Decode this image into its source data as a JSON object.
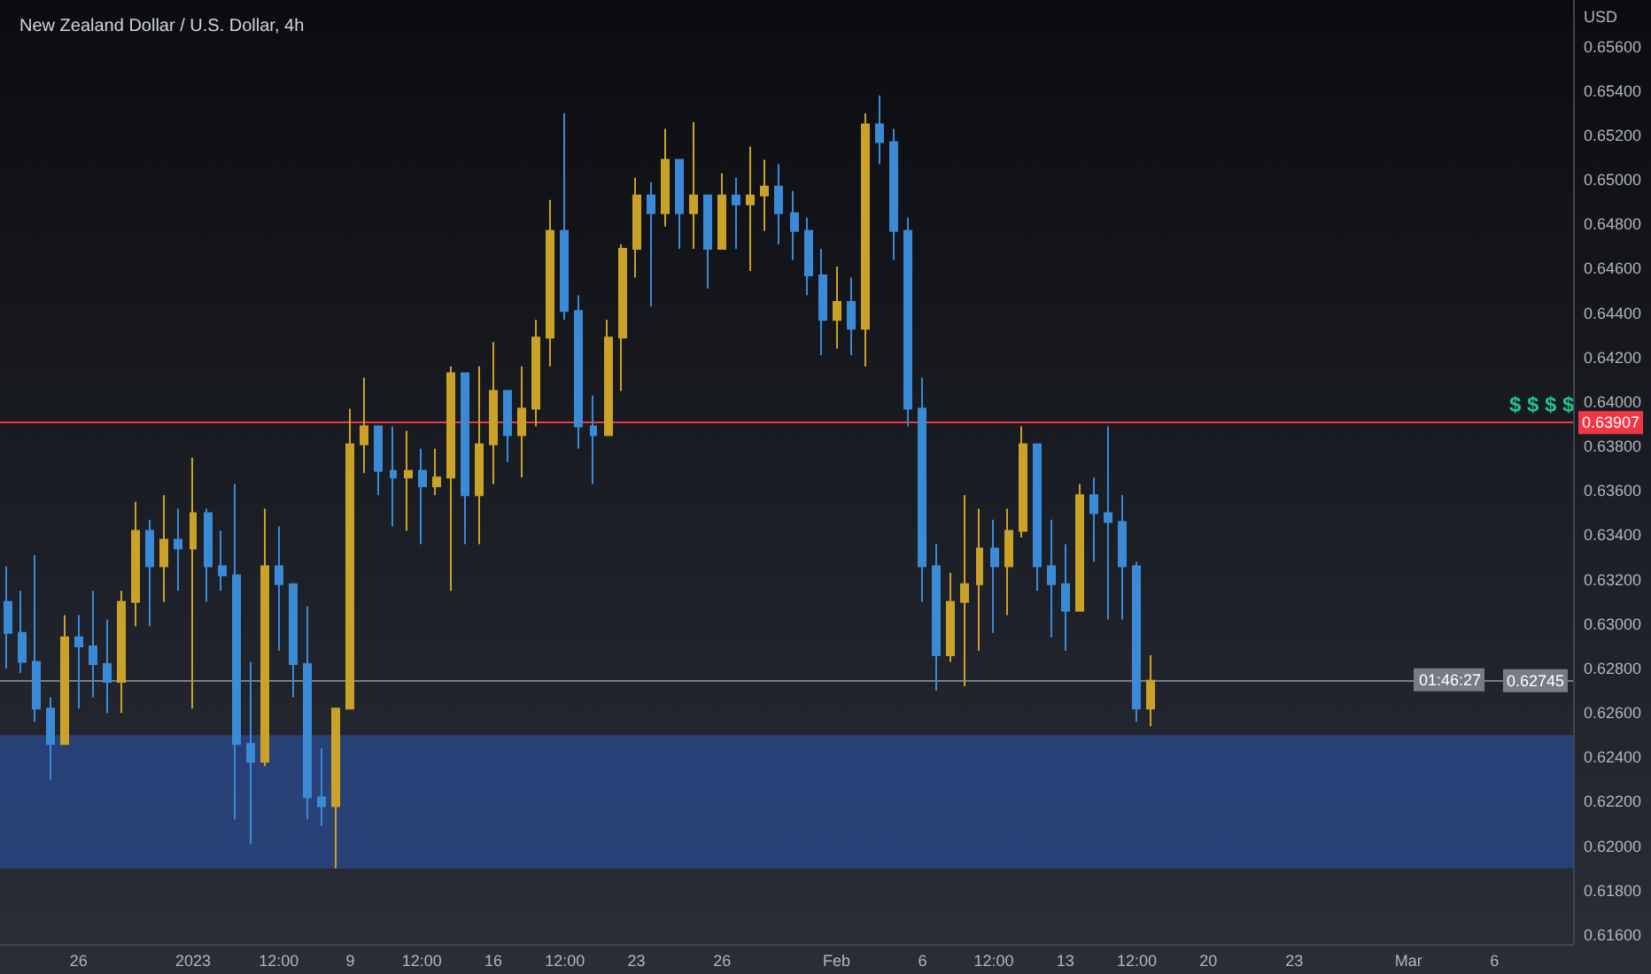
{
  "chart_data": {
    "type": "candlestick",
    "title": "New Zealand Dollar / U.S. Dollar, 4h",
    "ylabel": "USD",
    "categories": [
      null,
      null,
      null,
      null,
      null,
      "26",
      null,
      null,
      null,
      null,
      null,
      null,
      null,
      "2023",
      null,
      null,
      null,
      null,
      null,
      "12:00",
      null,
      null,
      null,
      null,
      "9",
      null,
      null,
      null,
      null,
      "12:00",
      null,
      null,
      null,
      null,
      "16",
      null,
      null,
      null,
      null,
      "12:00",
      null,
      null,
      null,
      null,
      "23",
      null,
      null,
      null,
      null,
      null,
      "26",
      null,
      null,
      null,
      null,
      null,
      null,
      null,
      "Feb",
      null,
      null,
      null,
      null,
      null,
      "6",
      null,
      null,
      null,
      null,
      "12:00",
      null,
      null,
      null,
      null,
      "13",
      null,
      null,
      null,
      null,
      "12:00",
      null,
      null,
      null,
      null,
      "20",
      null,
      null,
      null,
      null,
      null,
      "23",
      null,
      null,
      null,
      null,
      null,
      null,
      null,
      "Mar",
      null,
      null,
      null,
      null,
      null,
      "6",
      null,
      null,
      null,
      null,
      null
    ],
    "ohlc": [
      [
        0.631,
        0.6326,
        0.628,
        0.6296
      ],
      [
        0.6296,
        0.6315,
        0.6278,
        0.6283
      ],
      [
        0.6283,
        0.6331,
        0.6256,
        0.6262
      ],
      [
        0.6262,
        0.6267,
        0.623,
        0.6246
      ],
      [
        0.6246,
        0.6304,
        0.6246,
        0.6294
      ],
      [
        0.6294,
        0.6304,
        0.6262,
        0.629
      ],
      [
        0.629,
        0.6315,
        0.6267,
        0.6282
      ],
      [
        0.6282,
        0.6302,
        0.626,
        0.6274
      ],
      [
        0.6274,
        0.6315,
        0.626,
        0.631
      ],
      [
        0.631,
        0.6355,
        0.6299,
        0.6342
      ],
      [
        0.6342,
        0.6347,
        0.6299,
        0.6326
      ],
      [
        0.6326,
        0.6358,
        0.631,
        0.6338
      ],
      [
        0.6338,
        0.6352,
        0.6315,
        0.6334
      ],
      [
        0.6334,
        0.6375,
        0.6262,
        0.635
      ],
      [
        0.635,
        0.6352,
        0.631,
        0.6326
      ],
      [
        0.6326,
        0.6342,
        0.6315,
        0.6322
      ],
      [
        0.6322,
        0.6363,
        0.6212,
        0.6246
      ],
      [
        0.6246,
        0.6283,
        0.6201,
        0.6238
      ],
      [
        0.6238,
        0.6352,
        0.6236,
        0.6326
      ],
      [
        0.6326,
        0.6344,
        0.6288,
        0.6318
      ],
      [
        0.6318,
        0.6318,
        0.6267,
        0.6282
      ],
      [
        0.6282,
        0.6308,
        0.6212,
        0.6222
      ],
      [
        0.6222,
        0.6244,
        0.6209,
        0.6218
      ],
      [
        0.6218,
        0.6262,
        0.619,
        0.6262
      ],
      [
        0.6262,
        0.6397,
        0.6262,
        0.6381
      ],
      [
        0.6381,
        0.6411,
        0.6368,
        0.6389
      ],
      [
        0.6389,
        0.6389,
        0.6358,
        0.6369
      ],
      [
        0.6369,
        0.6389,
        0.6344,
        0.6366
      ],
      [
        0.6366,
        0.6387,
        0.6342,
        0.6369
      ],
      [
        0.6369,
        0.6379,
        0.6336,
        0.6362
      ],
      [
        0.6362,
        0.6379,
        0.6358,
        0.6366
      ],
      [
        0.6366,
        0.6416,
        0.6315,
        0.6413
      ],
      [
        0.6413,
        0.6413,
        0.6336,
        0.6358
      ],
      [
        0.6358,
        0.6416,
        0.6336,
        0.6381
      ],
      [
        0.6381,
        0.6427,
        0.6363,
        0.6405
      ],
      [
        0.6405,
        0.6405,
        0.6373,
        0.6385
      ],
      [
        0.6385,
        0.6416,
        0.6366,
        0.6397
      ],
      [
        0.6397,
        0.6437,
        0.6389,
        0.6429
      ],
      [
        0.6429,
        0.6491,
        0.6416,
        0.6477
      ],
      [
        0.6477,
        0.653,
        0.6437,
        0.6441
      ],
      [
        0.6441,
        0.6448,
        0.6379,
        0.6389
      ],
      [
        0.6389,
        0.6403,
        0.6363,
        0.6385
      ],
      [
        0.6385,
        0.6437,
        0.6385,
        0.6429
      ],
      [
        0.6429,
        0.6471,
        0.6405,
        0.6469
      ],
      [
        0.6469,
        0.6501,
        0.6456,
        0.6493
      ],
      [
        0.6493,
        0.6499,
        0.6443,
        0.6485
      ],
      [
        0.6485,
        0.6523,
        0.6479,
        0.6509
      ],
      [
        0.6509,
        0.6509,
        0.6469,
        0.6485
      ],
      [
        0.6485,
        0.6526,
        0.6469,
        0.6493
      ],
      [
        0.6493,
        0.6493,
        0.6451,
        0.6469
      ],
      [
        0.6469,
        0.6503,
        0.6469,
        0.6493
      ],
      [
        0.6493,
        0.6501,
        0.6469,
        0.6489
      ],
      [
        0.6489,
        0.6515,
        0.6459,
        0.6493
      ],
      [
        0.6493,
        0.6509,
        0.6477,
        0.6497
      ],
      [
        0.6497,
        0.6507,
        0.6471,
        0.6485
      ],
      [
        0.6485,
        0.6495,
        0.6464,
        0.6477
      ],
      [
        0.6477,
        0.6483,
        0.6448,
        0.6457
      ],
      [
        0.6457,
        0.6469,
        0.6421,
        0.6437
      ],
      [
        0.6437,
        0.6461,
        0.6424,
        0.6445
      ],
      [
        0.6445,
        0.6456,
        0.6421,
        0.6433
      ],
      [
        0.6433,
        0.653,
        0.6416,
        0.6525
      ],
      [
        0.6525,
        0.6538,
        0.6507,
        0.6517
      ],
      [
        0.6517,
        0.6523,
        0.6464,
        0.6477
      ],
      [
        0.6477,
        0.6483,
        0.6389,
        0.6397
      ],
      [
        0.6397,
        0.6411,
        0.631,
        0.6326
      ],
      [
        0.6326,
        0.6336,
        0.627,
        0.6286
      ],
      [
        0.6286,
        0.6323,
        0.6283,
        0.631
      ],
      [
        0.631,
        0.6358,
        0.6272,
        0.6318
      ],
      [
        0.6318,
        0.6352,
        0.6288,
        0.6334
      ],
      [
        0.6334,
        0.6347,
        0.6296,
        0.6326
      ],
      [
        0.6326,
        0.6352,
        0.6304,
        0.6342
      ],
      [
        0.6342,
        0.6389,
        0.6339,
        0.6381
      ],
      [
        0.6381,
        0.6381,
        0.6315,
        0.6326
      ],
      [
        0.6326,
        0.6347,
        0.6294,
        0.6318
      ],
      [
        0.6318,
        0.6336,
        0.6288,
        0.6306
      ],
      [
        0.6306,
        0.6363,
        0.6306,
        0.6358
      ],
      [
        0.6358,
        0.6366,
        0.6328,
        0.635
      ],
      [
        0.635,
        0.6389,
        0.6302,
        0.6346
      ],
      [
        0.6346,
        0.6358,
        0.6302,
        0.6326
      ],
      [
        0.6326,
        0.6328,
        0.6256,
        0.6262
      ],
      [
        0.6262,
        0.6286,
        0.6254,
        0.62745
      ],
      null,
      null,
      null,
      null,
      null,
      null,
      null,
      null,
      null,
      null,
      null,
      null,
      null,
      null,
      null,
      null,
      null,
      null,
      null,
      null,
      null,
      null,
      null,
      null,
      null,
      null,
      null,
      null,
      null
    ],
    "colors": [
      "#3a8ad6",
      "#3a8ad6",
      "#3a8ad6",
      "#3a8ad6",
      "#c9a227",
      "#3a8ad6",
      "#3a8ad6",
      "#3a8ad6",
      "#c9a227",
      "#c9a227",
      "#3a8ad6",
      "#c9a227",
      "#3a8ad6",
      "#c9a227",
      "#3a8ad6",
      "#3a8ad6",
      "#3a8ad6",
      "#3a8ad6",
      "#c9a227",
      "#3a8ad6",
      "#3a8ad6",
      "#3a8ad6",
      "#3a8ad6",
      "#c9a227",
      "#c9a227",
      "#c9a227",
      "#3a8ad6",
      "#3a8ad6",
      "#c9a227",
      "#3a8ad6",
      "#c9a227",
      "#c9a227",
      "#3a8ad6",
      "#c9a227",
      "#c9a227",
      "#3a8ad6",
      "#c9a227",
      "#c9a227",
      "#c9a227",
      "#3a8ad6",
      "#3a8ad6",
      "#3a8ad6",
      "#c9a227",
      "#c9a227",
      "#c9a227",
      "#3a8ad6",
      "#c9a227",
      "#3a8ad6",
      "#c9a227",
      "#3a8ad6",
      "#c9a227",
      "#3a8ad6",
      "#c9a227",
      "#c9a227",
      "#3a8ad6",
      "#3a8ad6",
      "#3a8ad6",
      "#3a8ad6",
      "#c9a227",
      "#3a8ad6",
      "#c9a227",
      "#3a8ad6",
      "#3a8ad6",
      "#3a8ad6",
      "#3a8ad6",
      "#3a8ad6",
      "#c9a227",
      "#c9a227",
      "#c9a227",
      "#3a8ad6",
      "#c9a227",
      "#c9a227",
      "#3a8ad6",
      "#3a8ad6",
      "#3a8ad6",
      "#c9a227",
      "#3a8ad6",
      "#3a8ad6",
      "#3a8ad6",
      "#3a8ad6",
      "#c9a227",
      null,
      null,
      null,
      null,
      null,
      null,
      null,
      null,
      null,
      null,
      null,
      null,
      null,
      null,
      null,
      null,
      null,
      null,
      null,
      null,
      null,
      null,
      null,
      null,
      null,
      null,
      null,
      null,
      null
    ],
    "ylim": [
      0.6156,
      0.6581
    ],
    "yticks": [
      {
        "value": 0.616,
        "label": "0.61600"
      },
      {
        "value": 0.618,
        "label": "0.61800"
      },
      {
        "value": 0.62,
        "label": "0.62000"
      },
      {
        "value": 0.622,
        "label": "0.62200"
      },
      {
        "value": 0.624,
        "label": "0.62400"
      },
      {
        "value": 0.626,
        "label": "0.62600"
      },
      {
        "value": 0.628,
        "label": "0.62800"
      },
      {
        "value": 0.63,
        "label": "0.63000"
      },
      {
        "value": 0.632,
        "label": "0.63200"
      },
      {
        "value": 0.634,
        "label": "0.63400"
      },
      {
        "value": 0.636,
        "label": "0.63600"
      },
      {
        "value": 0.638,
        "label": "0.63800"
      },
      {
        "value": 0.64,
        "label": "0.64000"
      },
      {
        "value": 0.642,
        "label": "0.64200"
      },
      {
        "value": 0.644,
        "label": "0.64400"
      },
      {
        "value": 0.646,
        "label": "0.64600"
      },
      {
        "value": 0.648,
        "label": "0.64800"
      },
      {
        "value": 0.65,
        "label": "0.65000"
      },
      {
        "value": 0.652,
        "label": "0.65200"
      },
      {
        "value": 0.654,
        "label": "0.65400"
      },
      {
        "value": 0.656,
        "label": "0.65600"
      }
    ],
    "ref_lines": [
      {
        "axis": "y",
        "value": 0.63907,
        "label": "0.63907",
        "color": "#f23645"
      },
      {
        "axis": "y",
        "value": 0.62745,
        "label": "0.62745",
        "color": "#787b86"
      }
    ],
    "bands": [
      {
        "axis": "y",
        "from": 0.619,
        "to": 0.625,
        "color": "#2a4a8f"
      }
    ],
    "annotations": [
      "$ $ $ $",
      "01:46:27"
    ],
    "grid": false
  }
}
